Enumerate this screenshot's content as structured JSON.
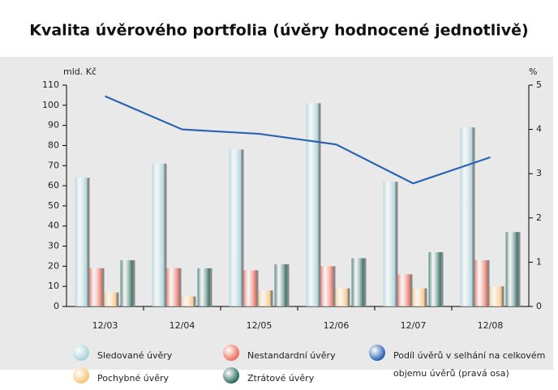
{
  "chart_data": {
    "type": "bar",
    "title": "Kvalita úvěrového portfolia (úvěry hodnocené jednotlivě)",
    "y_label": "mld. Kč",
    "y2_label": "%",
    "categories": [
      "12/03",
      "12/04",
      "12/05",
      "12/06",
      "12/07",
      "12/08"
    ],
    "series": [
      {
        "name": "Sledované úvěry",
        "color": "#a6d2d8",
        "values": [
          64,
          71,
          78,
          101,
          62,
          89
        ]
      },
      {
        "name": "Nestandardní úvěry",
        "color": "#ef6f60",
        "values": [
          19,
          19,
          18,
          20,
          16,
          23
        ]
      },
      {
        "name": "Pochybné úvěry",
        "color": "#fbc57a",
        "values": [
          7,
          5,
          8,
          9,
          9,
          10
        ]
      },
      {
        "name": "Ztrátové úvěry",
        "color": "#2c6b60",
        "values": [
          23,
          19,
          21,
          24,
          27,
          37
        ]
      },
      {
        "name": "Podíl úvěrů v selhání na celkovém objemu úvěrů (pravá osa)",
        "color": "#2a63b3",
        "type": "line",
        "axis": "y2",
        "values": [
          4.75,
          4.0,
          3.9,
          3.66,
          2.78,
          3.37
        ]
      }
    ],
    "ylim": [
      0,
      110
    ],
    "yticks": [
      0,
      10,
      20,
      30,
      40,
      50,
      60,
      70,
      80,
      90,
      100,
      110
    ],
    "y2lim": [
      0,
      5
    ],
    "y2ticks": [
      0,
      1,
      2,
      3,
      4,
      5
    ],
    "grid": false
  }
}
